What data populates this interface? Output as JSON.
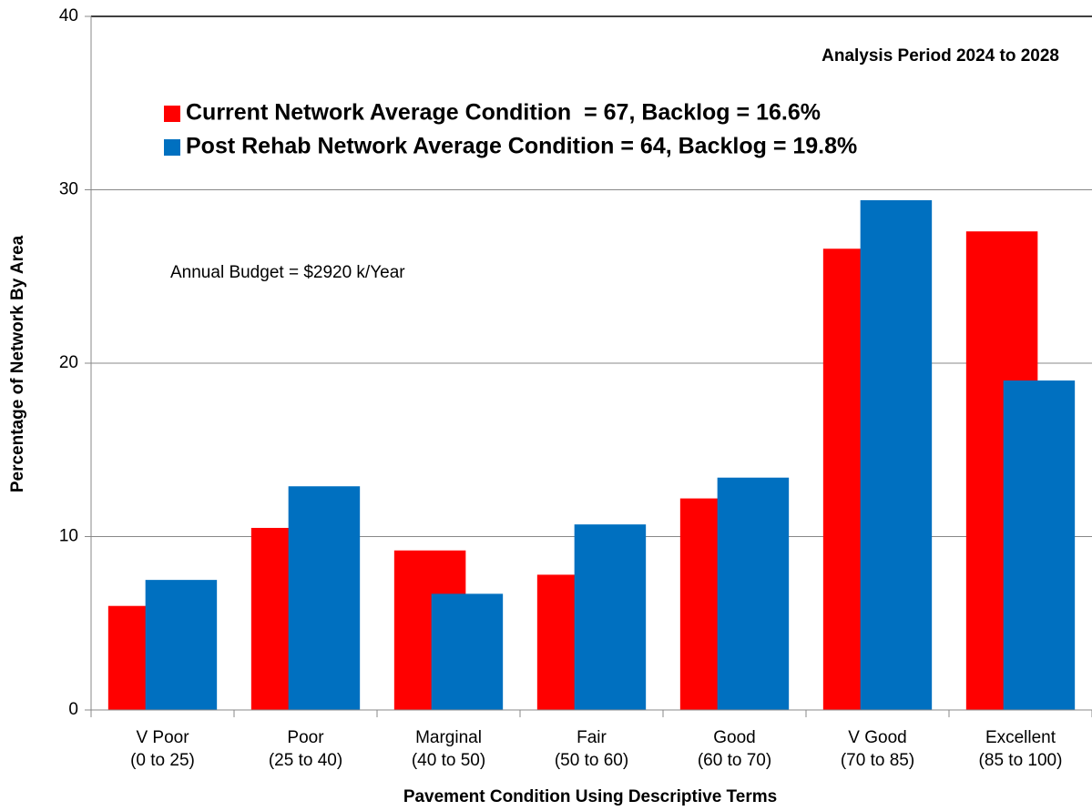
{
  "chart_data": {
    "type": "bar",
    "annotations": [
      "Analysis Period 2024 to 2028",
      "Annual Budget = $2920 k/Year"
    ],
    "xlabel": "Pavement Condition Using Descriptive Terms",
    "ylabel": "Percentage of Network By Area",
    "categories": [
      [
        "V Poor",
        "(0 to 25)"
      ],
      [
        "Poor",
        "(25 to 40)"
      ],
      [
        "Marginal",
        "(40 to 50)"
      ],
      [
        "Fair",
        "(50 to 60)"
      ],
      [
        "Good",
        "(60 to 70)"
      ],
      [
        "V Good",
        "(70 to 85)"
      ],
      [
        "Excellent",
        "(85 to 100)"
      ]
    ],
    "series": [
      {
        "name": "Current Network Average Condition  = 67, Backlog = 16.6%",
        "color": "#ff0000",
        "values": [
          6.0,
          10.5,
          9.2,
          7.8,
          12.2,
          26.6,
          27.6
        ]
      },
      {
        "name": "Post Rehab Network Average Condition = 64, Backlog = 19.8%",
        "color": "#0070c0",
        "values": [
          7.5,
          12.9,
          6.7,
          10.7,
          13.4,
          29.4,
          19.0
        ]
      }
    ],
    "ylim": [
      0,
      40
    ],
    "yticks": [
      0,
      10,
      20,
      30,
      40
    ],
    "grid": true
  }
}
